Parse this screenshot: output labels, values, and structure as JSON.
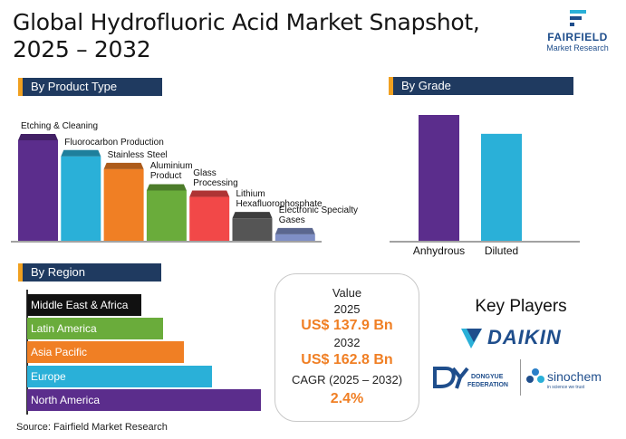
{
  "header": {
    "title_line1": "Global Hydrofluoric Acid Market Snapshot,",
    "title_line2": "2025 – 2032",
    "logo_name": "FAIRFIELD",
    "logo_sub": "Market Research"
  },
  "sections": {
    "product_type": "By Product Type",
    "grade": "By Grade",
    "region": "By Region"
  },
  "chart_data": [
    {
      "type": "bar",
      "section": "By Product Type",
      "categories": [
        "Etching & Cleaning",
        "Fluorocarbon Production",
        "Stainless Steel",
        "Aluminium Product",
        "Glass Processing",
        "Lithium Hexafluorophosphate",
        "Electronic Specialty Gases"
      ],
      "label_lines": [
        [
          "Etching & Cleaning"
        ],
        [
          "Fluorocarbon Production"
        ],
        [
          "Stainless Steel"
        ],
        [
          "Aluminium",
          "Product"
        ],
        [
          "Glass",
          "Processing"
        ],
        [
          "Lithium",
          "Hexafluorophosphate"
        ],
        [
          "Electronic Specialty",
          "Gases"
        ]
      ],
      "values": [
        100,
        85,
        73,
        53,
        47,
        27,
        12
      ],
      "colors": [
        "#5b2d8c",
        "#2ab0d8",
        "#f07f24",
        "#6aac3b",
        "#f24848",
        "#555555",
        "#7f8fc6"
      ]
    },
    {
      "type": "bar",
      "section": "By Grade",
      "categories": [
        "Anhydrous",
        "Diluted"
      ],
      "values": [
        100,
        85
      ],
      "colors": [
        "#5b2d8c",
        "#2ab0d8"
      ]
    },
    {
      "type": "bar",
      "orientation": "horizontal",
      "section": "By Region",
      "categories": [
        "Middle East & Africa",
        "Latin America",
        "Asia Pacific",
        "Europe",
        "North America"
      ],
      "values": [
        49,
        58,
        67,
        79,
        100
      ],
      "colors": [
        "#111111",
        "#6aac3b",
        "#f07f24",
        "#2ab0d8",
        "#5b2d8c"
      ]
    }
  ],
  "value_box": {
    "label": "Value",
    "year_start": "2025",
    "value_start": "US$ 137.9 Bn",
    "year_end": "2032",
    "value_end": "US$ 162.8 Bn",
    "cagr_label": "CAGR (2025 – 2032)",
    "cagr_value": "2.4%"
  },
  "key_players": {
    "title": "Key Players",
    "daikin": "DAIKIN",
    "dongyue": "DONGYUE",
    "dongyue_sub": "FEDERATION",
    "sinochem": "sinochem",
    "sinochem_tag": "in science we trust"
  },
  "source": "Source: Fairfield Market Research",
  "colors": {
    "header_bar": "#1f3a60",
    "accent": "#f0a020",
    "highlight": "#f07f24"
  }
}
